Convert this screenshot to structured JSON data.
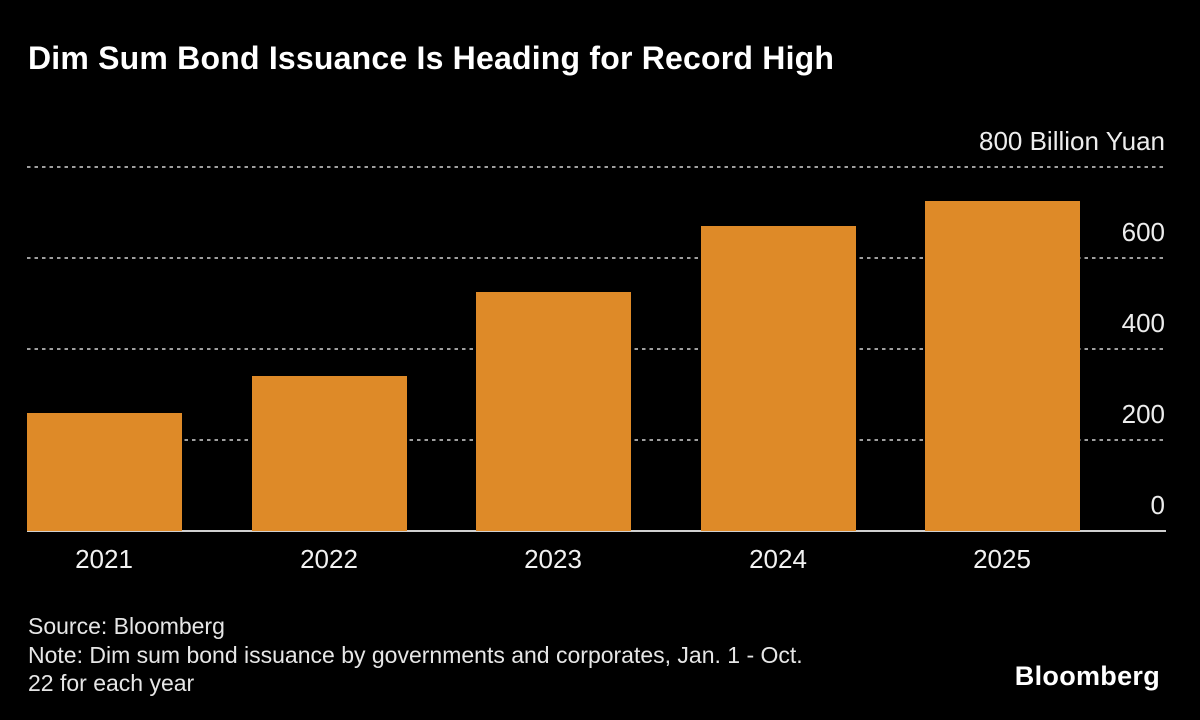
{
  "title": "Dim Sum Bond Issuance Is Heading for Record High",
  "chart_data": {
    "type": "bar",
    "categories": [
      "2021",
      "2022",
      "2023",
      "2024",
      "2025"
    ],
    "values": [
      260,
      340,
      525,
      670,
      725
    ],
    "unit": "Billion Yuan",
    "ylim": [
      0,
      800
    ],
    "yticks": [
      0,
      200,
      400,
      600,
      800
    ],
    "ytick_labels": [
      "0",
      "200",
      "400",
      "600",
      "800 Billion Yuan"
    ],
    "xlabel": "",
    "ylabel": "Billion Yuan",
    "grid": "horizontal-dashed",
    "legend": "none",
    "bar_color": "#de8a28",
    "background_color": "#000000"
  },
  "footer": {
    "source": "Source: Bloomberg",
    "note_lines": [
      "Note: Dim sum bond issuance by governments and corporates, Jan. 1 - Oct.",
      "22 for each year"
    ]
  },
  "branding": {
    "logo_text": "Bloomberg"
  },
  "colors": {
    "bar_orange": "#de8a28",
    "background": "#000000",
    "title_text": "#ffffff",
    "axis_text": "#ededed",
    "gridline": "#9e9e9e",
    "baseline": "#d0d0d0"
  }
}
